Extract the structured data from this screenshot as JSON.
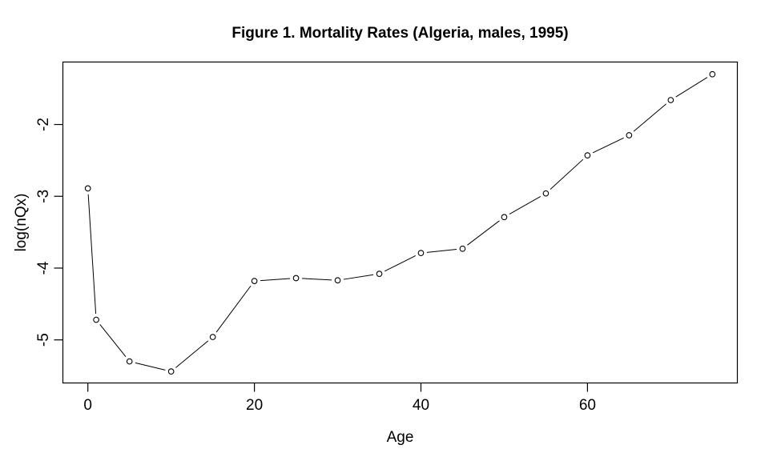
{
  "chart_data": {
    "type": "line",
    "title": "Figure 1. Mortality Rates (Algeria, males, 1995)",
    "xlabel": "Age",
    "ylabel": "log(nQx)",
    "x": [
      0,
      1,
      5,
      10,
      15,
      20,
      25,
      30,
      35,
      40,
      45,
      50,
      55,
      60,
      65,
      70,
      75
    ],
    "y": [
      -2.89,
      -4.72,
      -5.3,
      -5.44,
      -4.96,
      -4.18,
      -4.14,
      -4.17,
      -4.08,
      -3.79,
      -3.73,
      -3.29,
      -2.96,
      -2.43,
      -2.15,
      -1.66,
      -1.3
    ],
    "xlim": [
      -3,
      78
    ],
    "ylim": [
      -5.6,
      -1.13
    ],
    "xticks": [
      0,
      20,
      40,
      60
    ],
    "yticks": [
      -5,
      -4,
      -3,
      -2
    ],
    "grid": false,
    "legend": false,
    "marker": "open-circle",
    "line_style": "segments-with-gaps-at-markers",
    "color": "#000000",
    "background": "#ffffff"
  }
}
